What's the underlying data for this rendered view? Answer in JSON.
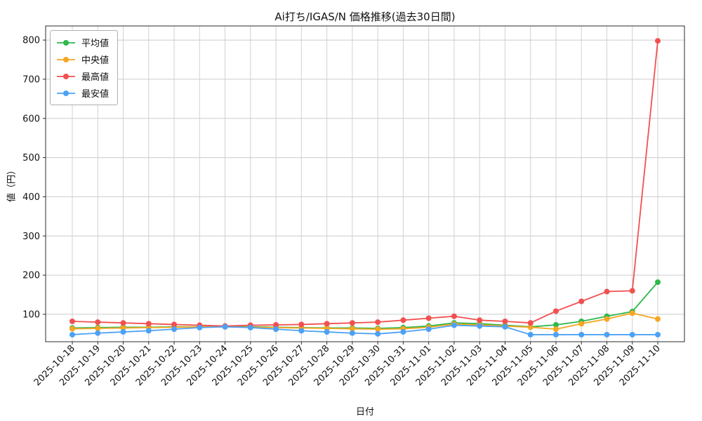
{
  "chart_data": {
    "type": "line",
    "title": "Ai打ち/IGAS/N 価格推移(過去30日間)",
    "xlabel": "日付",
    "ylabel": "値（円）",
    "grid": true,
    "legend_position": "upper-left",
    "ylim": [
      30,
      836
    ],
    "yticks": [
      100,
      200,
      300,
      400,
      500,
      600,
      700,
      800
    ],
    "x": [
      "2025-10-18",
      "2025-10-19",
      "2025-10-20",
      "2025-10-21",
      "2025-10-22",
      "2025-10-23",
      "2025-10-24",
      "2025-10-25",
      "2025-10-26",
      "2025-10-27",
      "2025-10-28",
      "2025-10-29",
      "2025-10-30",
      "2025-10-31",
      "2025-11-01",
      "2025-11-02",
      "2025-11-03",
      "2025-11-04",
      "2025-11-05",
      "2025-11-06",
      "2025-11-07",
      "2025-11-08",
      "2025-11-09",
      "2025-11-10"
    ],
    "series": [
      {
        "key": "mean",
        "name": "平均値",
        "color": "#2eb84d",
        "values": [
          65,
          66,
          67,
          67,
          68,
          68,
          69,
          68,
          67,
          66,
          65,
          65,
          64,
          66,
          70,
          78,
          76,
          72,
          68,
          73,
          82,
          95,
          107,
          182
        ]
      },
      {
        "key": "median",
        "name": "中央値",
        "color": "#f5a623",
        "values": [
          63,
          64,
          65,
          66,
          67,
          68,
          68,
          67,
          66,
          65,
          64,
          63,
          62,
          63,
          67,
          75,
          73,
          70,
          67,
          62,
          76,
          88,
          103,
          88
        ]
      },
      {
        "key": "max",
        "name": "最高値",
        "color": "#f25050",
        "values": [
          82,
          80,
          78,
          76,
          74,
          72,
          70,
          72,
          73,
          74,
          76,
          78,
          80,
          85,
          90,
          95,
          85,
          82,
          78,
          108,
          133,
          158,
          160,
          798
        ]
      },
      {
        "key": "min",
        "name": "最安値",
        "color": "#4da1f5",
        "values": [
          48,
          52,
          55,
          58,
          62,
          66,
          68,
          66,
          62,
          58,
          55,
          52,
          50,
          55,
          62,
          72,
          70,
          68,
          48,
          48,
          48,
          48,
          48,
          48
        ]
      }
    ]
  }
}
